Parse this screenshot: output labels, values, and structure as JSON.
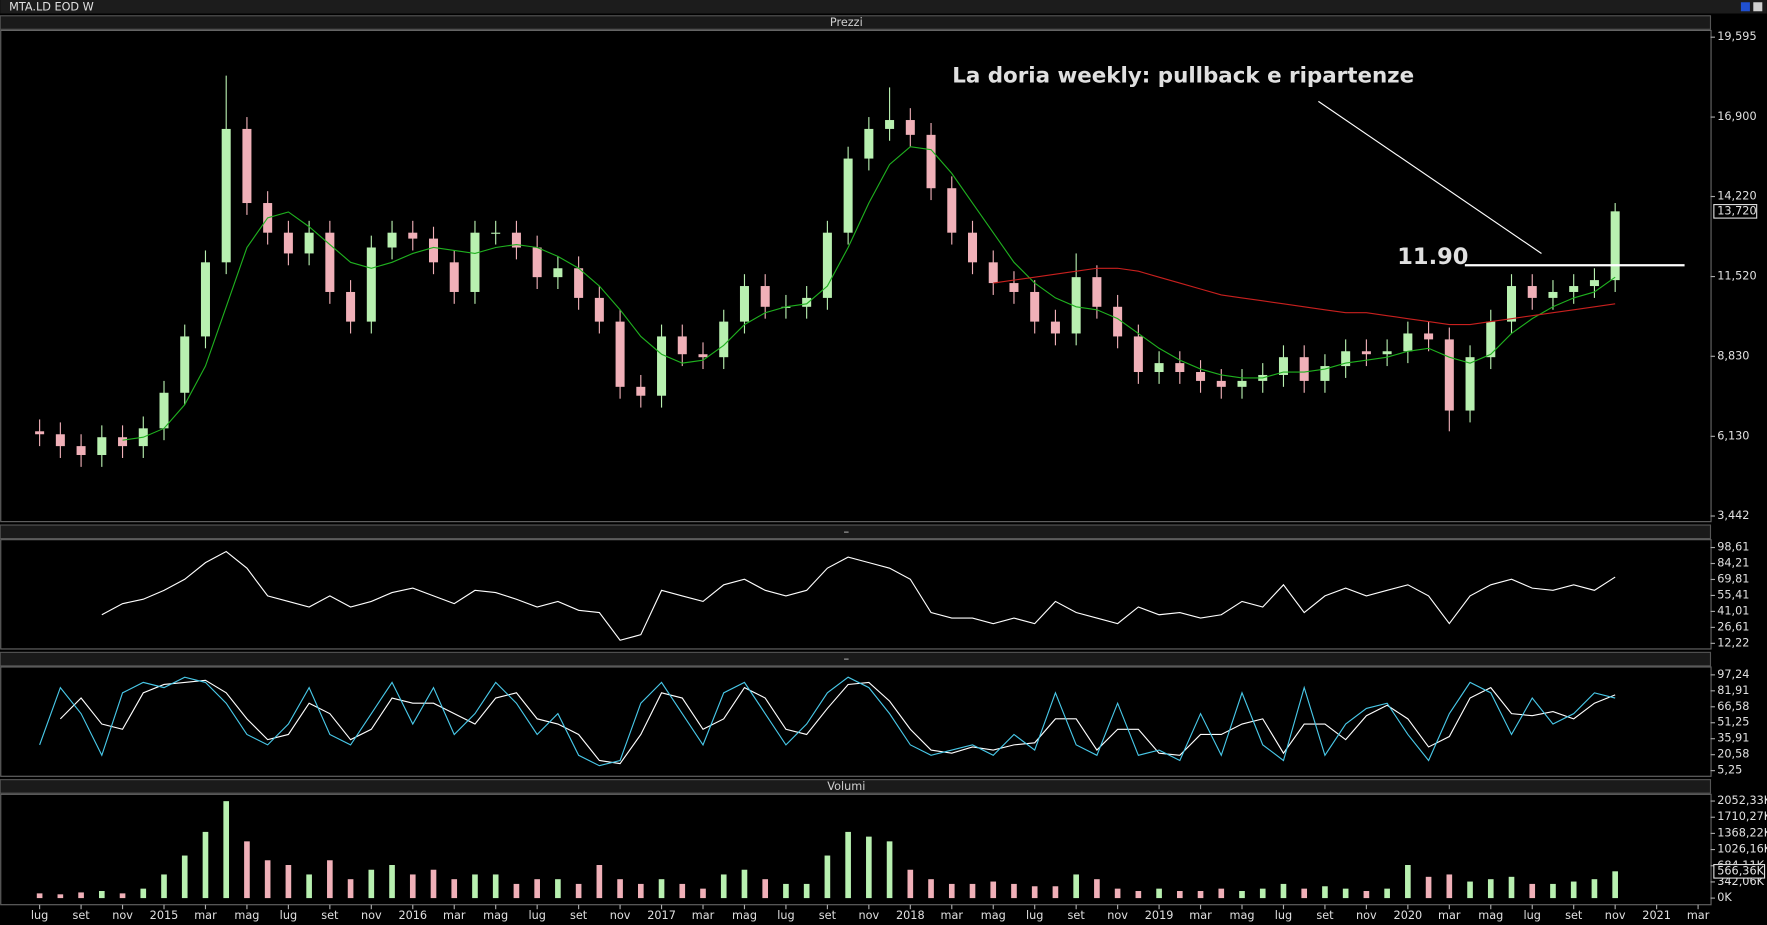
{
  "chart_data": [
    {
      "type": "candlestick",
      "window_title": "MTA.LD EOD W",
      "header": "Prezzi",
      "title": "La doria weekly: pullback e ripartenze",
      "level": {
        "value": 11.9,
        "label": "11.90"
      },
      "last_value_label": "13,720",
      "up_color": "#b8f0b0",
      "down_color": "#f0b0b8",
      "categories": [
        "lug",
        null,
        "set",
        null,
        "nov",
        null,
        "2015",
        null,
        "mar",
        null,
        "mag",
        null,
        "lug",
        null,
        "set",
        null,
        "nov",
        null,
        "2016",
        null,
        "mar",
        null,
        "mag",
        null,
        "lug",
        null,
        "set",
        null,
        "nov",
        null,
        "2017",
        null,
        "mar",
        null,
        "mag",
        null,
        "lug",
        null,
        "set",
        null,
        "nov",
        null,
        "2018",
        null,
        "mar",
        null,
        "mag",
        null,
        "lug",
        null,
        "set",
        null,
        "nov",
        null,
        "2019",
        null,
        "mar",
        null,
        "mag",
        null,
        "lug",
        null,
        "set",
        null,
        "nov",
        null,
        "2020",
        null,
        "mar",
        null,
        "mag",
        null,
        "lug",
        null,
        "set",
        null,
        "nov",
        null,
        "2021",
        null,
        "mar"
      ],
      "open": [
        6.3,
        6.2,
        5.8,
        5.5,
        6.1,
        5.8,
        6.4,
        7.6,
        9.5,
        12.0,
        16.5,
        14.0,
        13.0,
        12.3,
        13.0,
        11.0,
        10.0,
        12.5,
        13.0,
        12.8,
        12.0,
        11.0,
        13.0,
        13.0,
        12.5,
        11.5,
        11.8,
        10.8,
        10.0,
        7.8,
        7.5,
        9.5,
        8.9,
        8.8,
        10.0,
        11.2,
        10.5,
        10.5,
        10.8,
        13.0,
        15.5,
        16.5,
        16.8,
        16.3,
        14.5,
        13.0,
        12.0,
        11.3,
        11.0,
        10.0,
        9.6,
        11.5,
        10.5,
        9.5,
        8.3,
        8.6,
        8.3,
        8.0,
        7.8,
        8.0,
        8.2,
        8.8,
        8.0,
        8.5,
        9.0,
        8.9,
        9.0,
        9.6,
        9.4,
        7.0,
        8.8,
        10.0,
        11.2,
        10.8,
        11.0,
        11.2,
        11.4,
        null,
        null,
        null,
        null
      ],
      "high": [
        6.7,
        6.6,
        6.2,
        6.5,
        6.5,
        6.8,
        8.0,
        9.9,
        12.4,
        18.3,
        16.9,
        14.4,
        13.4,
        13.4,
        13.4,
        11.4,
        12.9,
        13.4,
        13.4,
        13.2,
        12.4,
        13.4,
        13.4,
        13.4,
        12.9,
        12.2,
        12.2,
        11.2,
        10.4,
        8.2,
        9.9,
        9.9,
        9.3,
        10.4,
        11.6,
        11.6,
        10.9,
        11.2,
        13.4,
        15.9,
        16.9,
        17.9,
        17.2,
        16.7,
        14.9,
        13.4,
        12.4,
        11.7,
        11.4,
        10.4,
        12.3,
        11.9,
        10.9,
        9.9,
        9.0,
        9.0,
        8.7,
        8.4,
        8.4,
        8.6,
        9.2,
        9.2,
        8.9,
        9.4,
        9.4,
        9.4,
        10.0,
        10.0,
        9.8,
        9.2,
        10.4,
        11.6,
        11.6,
        11.4,
        11.6,
        11.8,
        14.0,
        null,
        null,
        null,
        null
      ],
      "low": [
        5.8,
        5.4,
        5.1,
        5.1,
        5.4,
        5.4,
        6.0,
        7.2,
        9.1,
        11.6,
        13.6,
        12.6,
        11.9,
        11.9,
        10.6,
        9.6,
        9.6,
        12.1,
        12.4,
        11.6,
        10.6,
        10.6,
        12.6,
        12.1,
        11.1,
        11.1,
        10.4,
        9.6,
        7.4,
        7.1,
        7.1,
        8.5,
        8.4,
        8.4,
        9.6,
        10.1,
        10.1,
        10.1,
        10.4,
        12.6,
        15.1,
        16.1,
        15.9,
        14.1,
        12.6,
        11.6,
        10.9,
        10.6,
        9.6,
        9.2,
        9.2,
        10.1,
        9.1,
        7.9,
        7.9,
        7.9,
        7.6,
        7.4,
        7.4,
        7.6,
        7.8,
        7.6,
        7.6,
        8.1,
        8.5,
        8.5,
        8.6,
        9.0,
        6.3,
        6.6,
        8.4,
        9.6,
        10.4,
        10.4,
        10.6,
        10.8,
        11.0,
        null,
        null,
        null,
        null
      ],
      "close": [
        6.2,
        5.8,
        5.5,
        6.1,
        5.8,
        6.4,
        7.6,
        9.5,
        12.0,
        16.5,
        14.0,
        13.0,
        12.3,
        13.0,
        11.0,
        10.0,
        12.5,
        13.0,
        12.8,
        12.0,
        11.0,
        13.0,
        13.0,
        12.5,
        11.5,
        11.8,
        10.8,
        10.0,
        7.8,
        7.5,
        9.5,
        8.9,
        8.8,
        10.0,
        11.2,
        10.5,
        10.5,
        10.8,
        13.0,
        15.5,
        16.5,
        16.8,
        16.3,
        14.5,
        13.0,
        12.0,
        11.3,
        11.0,
        10.0,
        9.6,
        11.5,
        10.5,
        9.5,
        8.3,
        8.6,
        8.3,
        8.0,
        7.8,
        8.0,
        8.2,
        8.8,
        8.0,
        8.5,
        9.0,
        8.9,
        9.0,
        9.6,
        9.4,
        7.0,
        8.8,
        10.0,
        11.2,
        10.8,
        11.0,
        11.2,
        11.4,
        13.72,
        null,
        null,
        null,
        null
      ],
      "series": [
        {
          "color": "#1fb01f",
          "values": [
            null,
            null,
            null,
            null,
            6.0,
            6.1,
            6.4,
            7.2,
            8.5,
            10.5,
            12.5,
            13.5,
            13.7,
            13.2,
            12.6,
            12.0,
            11.8,
            12.0,
            12.3,
            12.5,
            12.4,
            12.3,
            12.5,
            12.6,
            12.5,
            12.2,
            11.8,
            11.2,
            10.4,
            9.5,
            8.9,
            8.6,
            8.7,
            9.2,
            9.9,
            10.3,
            10.5,
            10.6,
            11.2,
            12.5,
            14.0,
            15.3,
            15.9,
            15.8,
            15.0,
            14.0,
            13.0,
            12.0,
            11.3,
            10.8,
            10.5,
            10.4,
            10.1,
            9.6,
            9.1,
            8.7,
            8.4,
            8.2,
            8.1,
            8.1,
            8.3,
            8.3,
            8.4,
            8.6,
            8.7,
            8.8,
            9.0,
            9.1,
            8.8,
            8.6,
            8.9,
            9.6,
            10.1,
            10.5,
            10.8,
            11.0,
            11.5,
            null,
            null,
            null,
            null
          ]
        },
        {
          "color": "#c8201e",
          "values": [
            null,
            null,
            null,
            null,
            null,
            null,
            null,
            null,
            null,
            null,
            null,
            null,
            null,
            null,
            null,
            null,
            null,
            null,
            null,
            null,
            null,
            null,
            null,
            null,
            null,
            null,
            null,
            null,
            null,
            null,
            null,
            null,
            null,
            null,
            null,
            null,
            null,
            null,
            null,
            null,
            null,
            null,
            null,
            null,
            null,
            null,
            11.3,
            11.4,
            11.5,
            11.6,
            11.7,
            11.8,
            11.8,
            11.7,
            11.5,
            11.3,
            11.1,
            10.9,
            10.8,
            10.7,
            10.6,
            10.5,
            10.4,
            10.3,
            10.3,
            10.2,
            10.1,
            10.0,
            9.9,
            9.9,
            10.0,
            10.1,
            10.2,
            10.3,
            10.4,
            10.5,
            10.6,
            null,
            null,
            null,
            null
          ]
        }
      ],
      "ylim": [
        3.252,
        19.823
      ],
      "yticks": [
        {
          "value": 19.595,
          "label": "19,595"
        },
        {
          "value": 16.9,
          "label": "16,900"
        },
        {
          "value": 14.22,
          "label": "14,220"
        },
        {
          "value": 11.52,
          "label": "11,520"
        },
        {
          "value": 8.83,
          "label": "8,830"
        },
        {
          "value": 6.13,
          "label": "6,130"
        },
        {
          "value": 3.442,
          "label": "3,442"
        }
      ]
    },
    {
      "type": "line",
      "header": "–",
      "series": [
        {
          "color": "#ffffff",
          "values": [
            null,
            null,
            null,
            38,
            48,
            52,
            60,
            70,
            85,
            95,
            80,
            55,
            50,
            45,
            55,
            45,
            50,
            58,
            62,
            55,
            48,
            60,
            58,
            52,
            45,
            50,
            42,
            40,
            15,
            20,
            60,
            55,
            50,
            65,
            70,
            60,
            55,
            60,
            80,
            90,
            85,
            80,
            70,
            40,
            35,
            35,
            30,
            35,
            30,
            50,
            40,
            35,
            30,
            45,
            38,
            40,
            35,
            38,
            50,
            45,
            65,
            40,
            55,
            62,
            55,
            60,
            65,
            55,
            30,
            55,
            65,
            70,
            62,
            60,
            65,
            60,
            72,
            null,
            null,
            null,
            null
          ]
        }
      ],
      "ylim": [
        7.14,
        105.7
      ],
      "yticks": [
        {
          "value": 98.61,
          "label": "98,61"
        },
        {
          "value": 84.21,
          "label": "84,21"
        },
        {
          "value": 69.81,
          "label": "69,81"
        },
        {
          "value": 55.41,
          "label": "55,41"
        },
        {
          "value": 41.01,
          "label": "41,01"
        },
        {
          "value": 26.61,
          "label": "26,61"
        },
        {
          "value": 12.22,
          "label": "12,22"
        }
      ]
    },
    {
      "type": "line",
      "header": "–",
      "series": [
        {
          "color": "#ffffff",
          "values": [
            null,
            55,
            75,
            50,
            45,
            80,
            88,
            90,
            92,
            80,
            55,
            35,
            40,
            70,
            60,
            35,
            45,
            75,
            70,
            70,
            60,
            50,
            75,
            80,
            55,
            50,
            40,
            15,
            12,
            40,
            80,
            75,
            45,
            55,
            85,
            75,
            45,
            40,
            65,
            88,
            90,
            72,
            45,
            25,
            22,
            28,
            25,
            30,
            32,
            55,
            55,
            25,
            45,
            45,
            22,
            20,
            40,
            40,
            50,
            55,
            22,
            50,
            50,
            35,
            58,
            68,
            55,
            28,
            38,
            75,
            85,
            60,
            58,
            62,
            55,
            70,
            78,
            null,
            null,
            null,
            null
          ]
        },
        {
          "color": "#48c8e8",
          "values": [
            30,
            85,
            60,
            20,
            80,
            90,
            85,
            95,
            90,
            70,
            40,
            30,
            50,
            85,
            40,
            30,
            60,
            90,
            50,
            85,
            40,
            60,
            90,
            70,
            40,
            60,
            20,
            10,
            15,
            70,
            90,
            60,
            30,
            80,
            90,
            60,
            30,
            50,
            80,
            95,
            85,
            60,
            30,
            20,
            25,
            30,
            20,
            40,
            25,
            80,
            30,
            20,
            70,
            20,
            25,
            15,
            60,
            20,
            80,
            30,
            15,
            85,
            20,
            50,
            65,
            70,
            40,
            15,
            60,
            90,
            80,
            40,
            75,
            50,
            60,
            80,
            75,
            null,
            null,
            null,
            null
          ]
        }
      ],
      "ylim": [
        -0.16,
        104.8
      ],
      "yticks": [
        {
          "value": 97.24,
          "label": "97,24"
        },
        {
          "value": 81.91,
          "label": "81,91"
        },
        {
          "value": 66.58,
          "label": "66,58"
        },
        {
          "value": 51.25,
          "label": "51,25"
        },
        {
          "value": 35.91,
          "label": "35,91"
        },
        {
          "value": 20.58,
          "label": "20,58"
        },
        {
          "value": 5.25,
          "label": "5,25"
        }
      ]
    },
    {
      "type": "bar",
      "header": "Volumi",
      "last_value_label": "566,36K",
      "values": [
        100,
        80,
        120,
        150,
        100,
        200,
        500,
        900,
        1400,
        2050,
        1200,
        800,
        700,
        500,
        800,
        400,
        600,
        700,
        500,
        600,
        400,
        500,
        500,
        300,
        400,
        400,
        300,
        700,
        400,
        300,
        400,
        300,
        200,
        500,
        600,
        400,
        300,
        300,
        900,
        1400,
        1300,
        1200,
        600,
        400,
        300,
        300,
        350,
        300,
        250,
        250,
        500,
        400,
        200,
        150,
        200,
        150,
        150,
        200,
        150,
        200,
        300,
        200,
        250,
        200,
        150,
        200,
        700,
        450,
        500,
        350,
        400,
        450,
        300,
        300,
        350,
        400,
        566.36,
        null,
        null,
        null,
        null
      ],
      "ylim": [
        -140,
        2195
      ],
      "yticks": [
        {
          "value": 2052.33,
          "label": "2052,33K"
        },
        {
          "value": 1710.27,
          "label": "1710,27K"
        },
        {
          "value": 1368.22,
          "label": "1368,22K"
        },
        {
          "value": 1026.16,
          "label": "1026,16K"
        },
        {
          "value": 684.11,
          "label": "684,11K"
        },
        {
          "value": 342.06,
          "label": "342,06K"
        },
        {
          "value": 0,
          "label": "0K"
        }
      ]
    }
  ]
}
